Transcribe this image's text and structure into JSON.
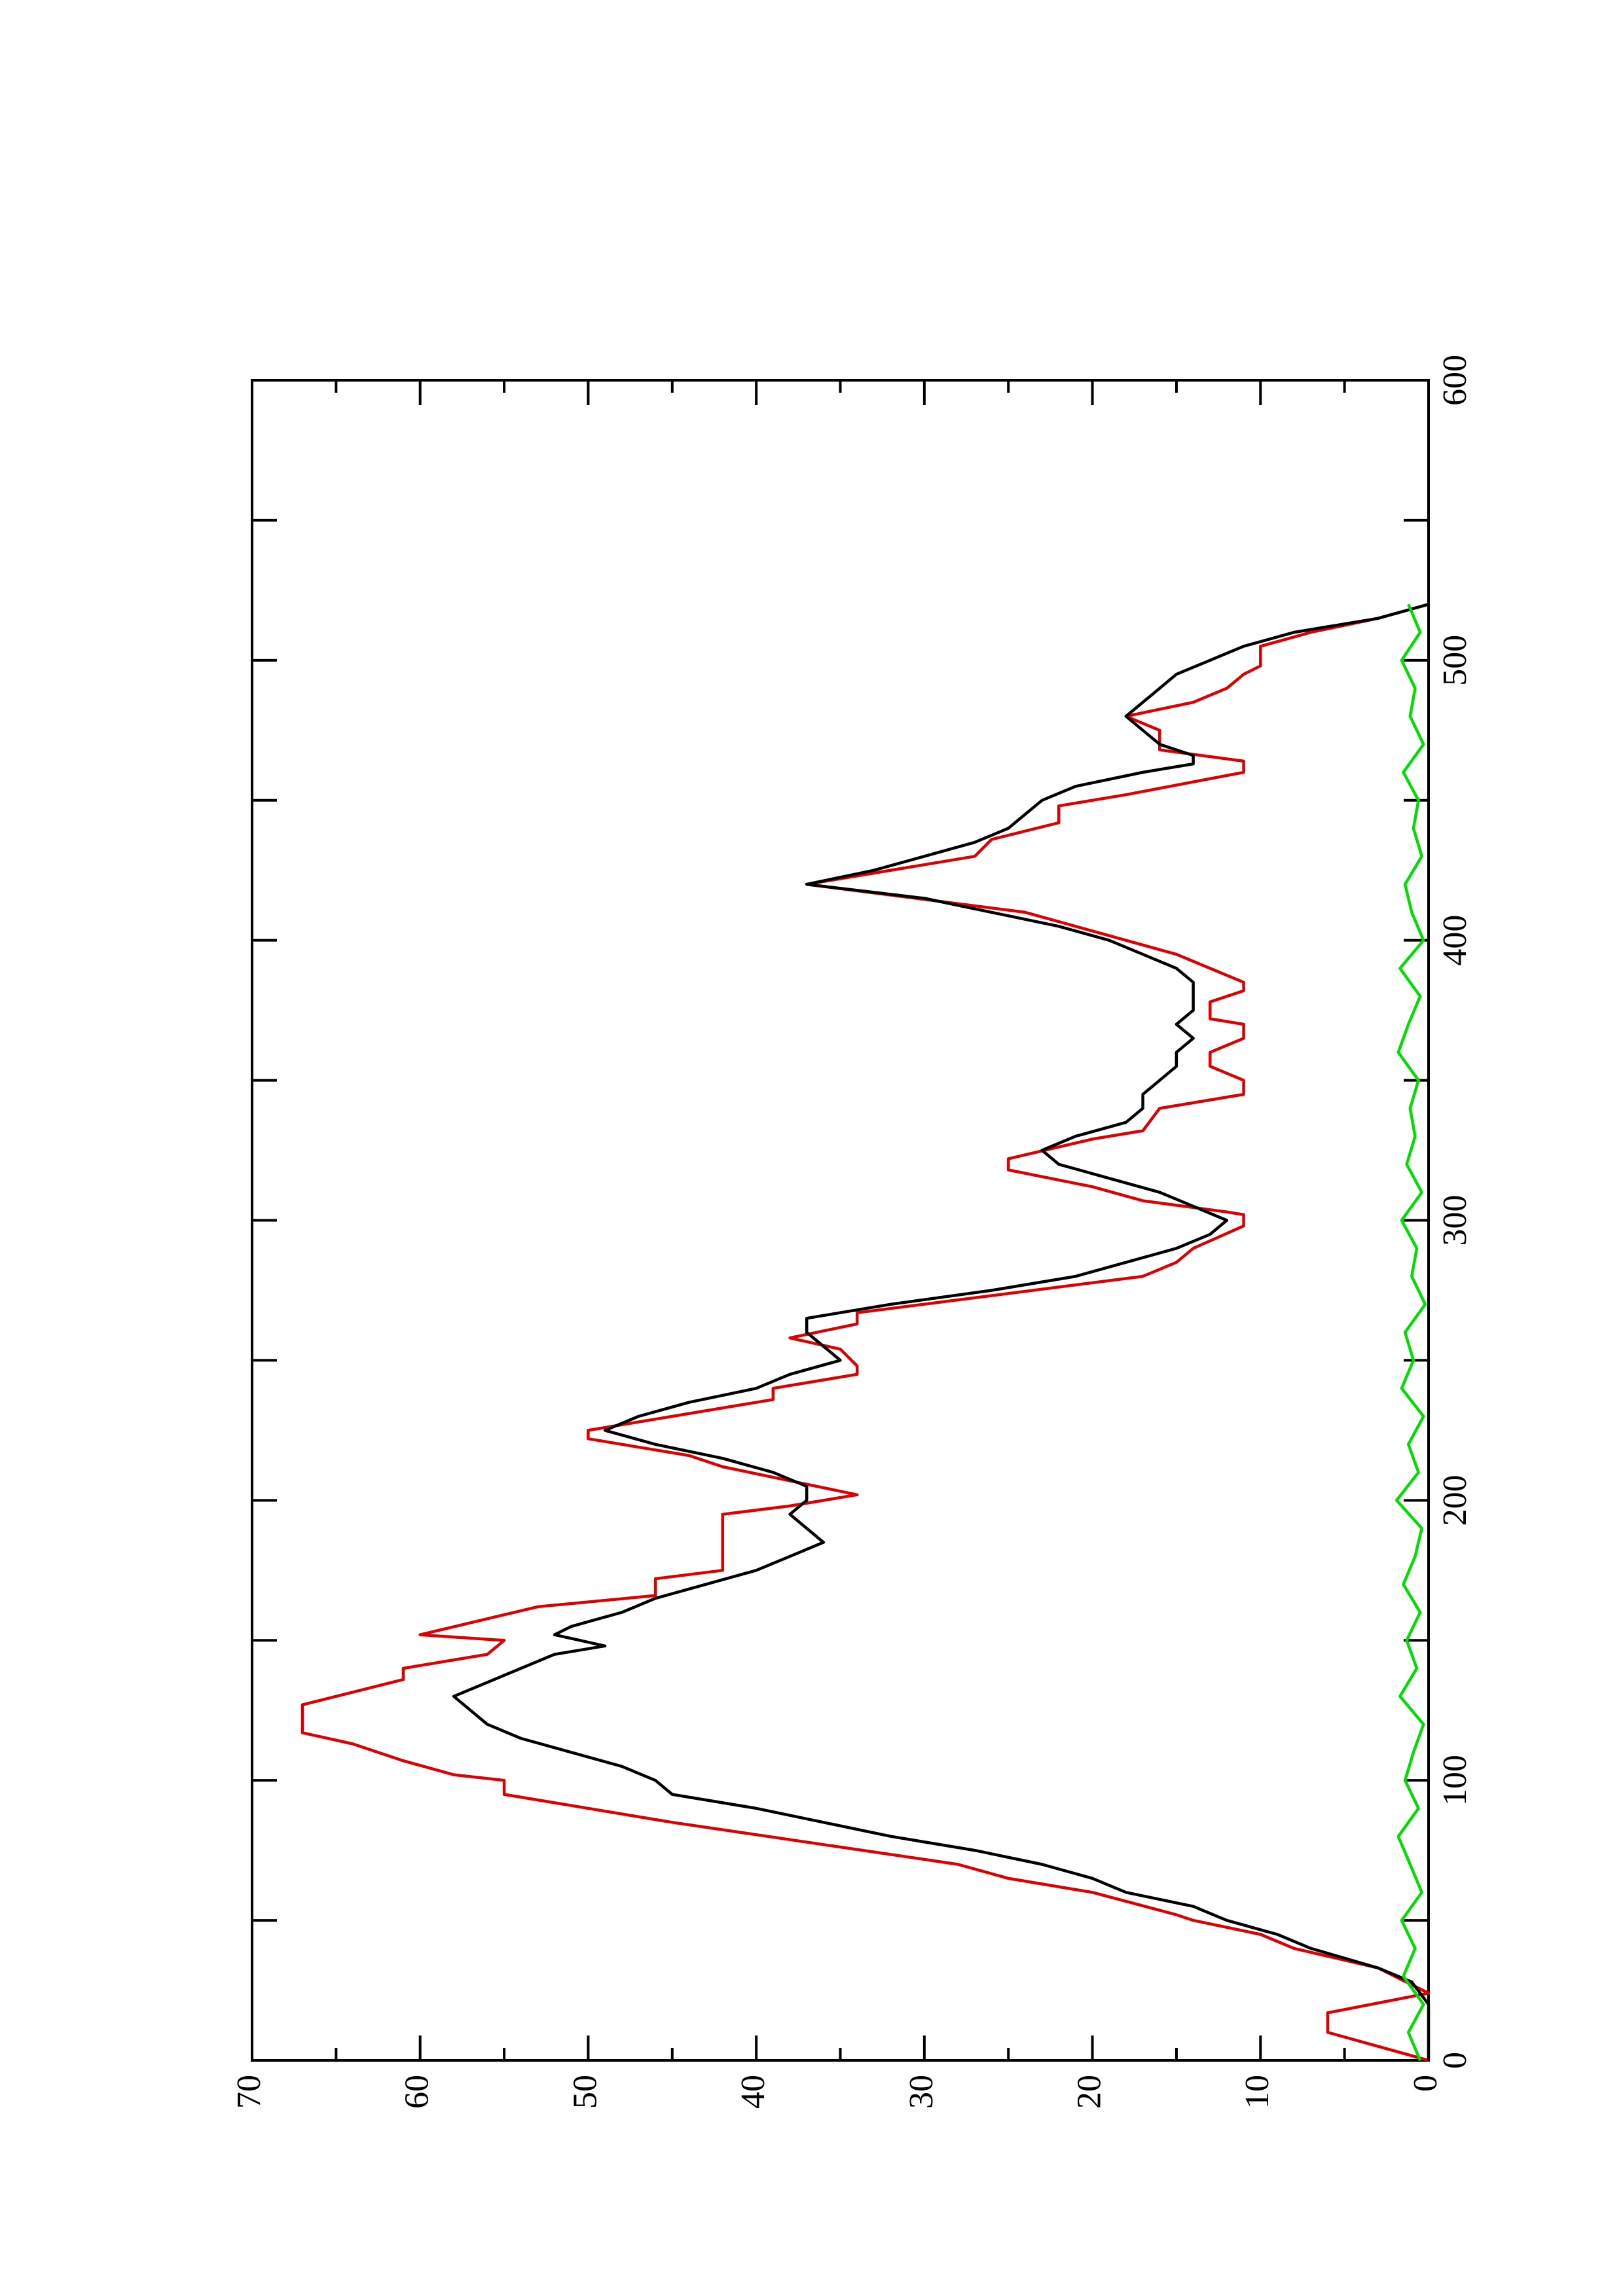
{
  "chart_data": {
    "type": "line",
    "rotated": true,
    "xlim": [
      0,
      600
    ],
    "xticks": [
      0,
      100,
      200,
      300,
      400,
      500,
      600
    ],
    "xminorticks": [
      50,
      150,
      250,
      350,
      450,
      550
    ],
    "ylim": [
      0,
      70
    ],
    "yticks": [
      0,
      10,
      20,
      30,
      40,
      50,
      60,
      70
    ],
    "yminorticks": [
      5,
      15,
      25,
      35,
      45,
      55,
      65
    ],
    "series": [
      {
        "color": "#dd0000",
        "x": [
          0,
          10,
          17,
          24,
          30,
          33,
          40,
          45,
          50,
          52,
          60,
          65,
          70,
          85,
          93,
          95,
          100,
          102,
          107,
          113,
          117,
          127,
          136,
          140,
          145,
          150,
          152,
          162,
          166,
          172,
          175,
          187,
          195,
          198,
          202,
          207,
          212,
          216,
          222,
          225,
          236,
          240,
          245,
          248,
          254,
          258,
          263,
          267,
          280,
          285,
          290,
          298,
          302,
          303,
          307,
          312,
          318,
          322,
          329,
          332,
          340,
          345,
          350,
          355,
          360,
          365,
          370,
          372,
          378,
          382,
          385,
          390,
          395,
          400,
          410,
          420,
          430,
          436,
          442,
          448,
          452,
          460,
          464,
          468,
          475,
          480,
          485,
          490,
          495,
          498,
          505,
          510,
          515,
          520
        ],
        "values": [
          0,
          6,
          6,
          0,
          2,
          3,
          8,
          10,
          14,
          15,
          20,
          25,
          28,
          45,
          53,
          55,
          55,
          58,
          61,
          64,
          67,
          67,
          61,
          61,
          56,
          55,
          60,
          53,
          46,
          46,
          42,
          42,
          42,
          38,
          34,
          38,
          42,
          44,
          50,
          50,
          39,
          39,
          34,
          34,
          35,
          38,
          34,
          34,
          17,
          15,
          14,
          11,
          11,
          12,
          17,
          20,
          25,
          25,
          20,
          17,
          16,
          11,
          11,
          13,
          13,
          11,
          11,
          13,
          13,
          11,
          11,
          13,
          15,
          18,
          24,
          37,
          27,
          26,
          22,
          22,
          18,
          11,
          11,
          16,
          16,
          18,
          14,
          12,
          11,
          10,
          10,
          7,
          3,
          0
        ]
      },
      {
        "color": "#000000",
        "x": [
          0,
          10,
          20,
          28,
          33,
          40,
          45,
          50,
          55,
          60,
          65,
          70,
          75,
          80,
          85,
          90,
          95,
          100,
          105,
          110,
          115,
          120,
          125,
          130,
          135,
          140,
          145,
          148,
          152,
          155,
          160,
          165,
          170,
          175,
          180,
          185,
          190,
          195,
          200,
          205,
          210,
          215,
          220,
          225,
          230,
          235,
          240,
          245,
          250,
          255,
          260,
          265,
          270,
          275,
          280,
          285,
          290,
          295,
          300,
          305,
          310,
          315,
          320,
          325,
          330,
          335,
          340,
          345,
          350,
          355,
          360,
          365,
          370,
          375,
          380,
          385,
          390,
          395,
          400,
          405,
          410,
          415,
          420,
          425,
          430,
          435,
          440,
          445,
          450,
          455,
          460,
          463,
          466,
          470,
          475,
          480,
          485,
          490,
          495,
          500,
          505,
          510,
          515,
          520
        ],
        "values": [
          0,
          0,
          0,
          1,
          3,
          7,
          9,
          12,
          14,
          18,
          20,
          23,
          27,
          32,
          36,
          40,
          45,
          46,
          48,
          51,
          54,
          56,
          57,
          58,
          56,
          54,
          52,
          49,
          52,
          51,
          48,
          46,
          43,
          40,
          38,
          36,
          37,
          38,
          37,
          37,
          39,
          42,
          46,
          49,
          47,
          44,
          40,
          38,
          35,
          36,
          37,
          37,
          32,
          26,
          21,
          18,
          15,
          13,
          12,
          14,
          16,
          19,
          22,
          23,
          21,
          18,
          17,
          17,
          16,
          15,
          15,
          14,
          15,
          14,
          14,
          14,
          15,
          17,
          19,
          22,
          26,
          30,
          37,
          33,
          30,
          27,
          25,
          24,
          23,
          21,
          17,
          14,
          14,
          16,
          17,
          18,
          17,
          16,
          15,
          13,
          11,
          8,
          3,
          0
        ]
      },
      {
        "color": "#00dd00",
        "x": [
          0,
          10,
          20,
          30,
          40,
          50,
          60,
          70,
          80,
          90,
          100,
          110,
          120,
          130,
          140,
          150,
          160,
          170,
          180,
          190,
          200,
          210,
          220,
          230,
          240,
          250,
          260,
          270,
          280,
          290,
          300,
          310,
          320,
          330,
          340,
          350,
          360,
          370,
          380,
          390,
          400,
          410,
          420,
          430,
          440,
          450,
          460,
          470,
          480,
          490,
          500,
          510,
          520
        ],
        "values": [
          0.5,
          1.2,
          0.3,
          1.5,
          0.8,
          1.6,
          0.4,
          1.1,
          1.8,
          0.6,
          1.4,
          0.9,
          0.3,
          1.7,
          0.7,
          1.3,
          0.5,
          1.5,
          0.8,
          0.4,
          1.9,
          0.6,
          1.2,
          0.3,
          1.6,
          0.9,
          1.4,
          0.2,
          1.0,
          0.7,
          1.6,
          0.4,
          1.3,
          0.8,
          1.1,
          0.6,
          1.8,
          1.2,
          0.5,
          1.7,
          0.3,
          1.0,
          1.4,
          0.4,
          0.9,
          0.6,
          1.5,
          0.3,
          1.1,
          0.8,
          1.6,
          0.5,
          1.2
        ]
      }
    ]
  }
}
